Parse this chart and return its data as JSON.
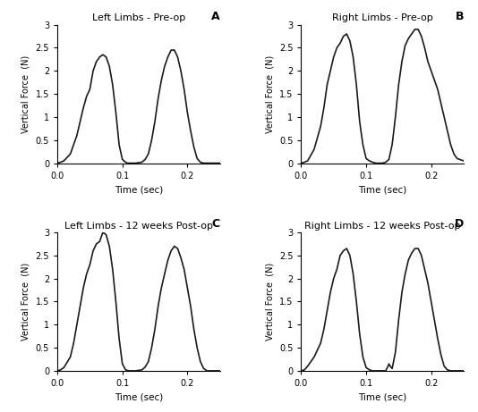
{
  "panels": [
    {
      "title": "Left Limbs - Pre-op",
      "label": "A",
      "xlim": [
        0.0,
        0.25
      ],
      "ylim": [
        0,
        3
      ],
      "xlabel": "Time (sec)",
      "ylabel": "Vertical Force  (N)",
      "xticks": [
        0.0,
        0.1,
        0.2
      ],
      "yticks": [
        0,
        0.5,
        1,
        1.5,
        2,
        2.5,
        3
      ],
      "curves": [
        {
          "t": [
            0.0,
            0.005,
            0.01,
            0.02,
            0.03,
            0.04,
            0.045,
            0.05,
            0.055,
            0.06,
            0.065,
            0.07,
            0.075,
            0.08,
            0.085,
            0.09,
            0.095,
            0.1,
            0.105,
            0.108,
            0.11,
            0.115,
            0.12
          ],
          "y": [
            0.0,
            0.02,
            0.05,
            0.2,
            0.6,
            1.2,
            1.45,
            1.6,
            2.0,
            2.2,
            2.3,
            2.35,
            2.3,
            2.1,
            1.7,
            1.1,
            0.4,
            0.08,
            0.02,
            0.0,
            0.0,
            0.0,
            0.0
          ]
        },
        {
          "t": [
            0.12,
            0.13,
            0.135,
            0.14,
            0.145,
            0.15,
            0.155,
            0.16,
            0.165,
            0.17,
            0.175,
            0.18,
            0.185,
            0.19,
            0.195,
            0.2,
            0.205,
            0.21,
            0.215,
            0.22,
            0.225,
            0.23,
            0.24,
            0.25
          ],
          "y": [
            0.0,
            0.02,
            0.08,
            0.2,
            0.5,
            0.9,
            1.4,
            1.8,
            2.1,
            2.3,
            2.45,
            2.45,
            2.3,
            2.0,
            1.6,
            1.1,
            0.7,
            0.35,
            0.1,
            0.02,
            0.0,
            0.0,
            0.0,
            0.0
          ]
        }
      ]
    },
    {
      "title": "Right Limbs - Pre-op",
      "label": "B",
      "xlim": [
        0.0,
        0.25
      ],
      "ylim": [
        0,
        3
      ],
      "xlabel": "Time (sec)",
      "ylabel": "Vertical Force  (N)",
      "xticks": [
        0.0,
        0.1,
        0.2
      ],
      "yticks": [
        0,
        0.5,
        1,
        1.5,
        2,
        2.5,
        3
      ],
      "curves": [
        {
          "t": [
            0.0,
            0.005,
            0.01,
            0.02,
            0.03,
            0.035,
            0.04,
            0.045,
            0.05,
            0.055,
            0.06,
            0.065,
            0.07,
            0.075,
            0.08,
            0.085,
            0.09,
            0.095,
            0.1,
            0.105,
            0.11,
            0.115,
            0.12
          ],
          "y": [
            0.0,
            0.02,
            0.05,
            0.3,
            0.8,
            1.2,
            1.7,
            2.0,
            2.3,
            2.5,
            2.6,
            2.75,
            2.8,
            2.65,
            2.3,
            1.7,
            0.9,
            0.4,
            0.1,
            0.05,
            0.02,
            0.0,
            0.0
          ]
        },
        {
          "t": [
            0.12,
            0.125,
            0.13,
            0.135,
            0.14,
            0.145,
            0.15,
            0.155,
            0.16,
            0.165,
            0.17,
            0.175,
            0.18,
            0.185,
            0.19,
            0.195,
            0.2,
            0.205,
            0.21,
            0.215,
            0.22,
            0.225,
            0.23,
            0.235,
            0.24,
            0.25
          ],
          "y": [
            0.0,
            0.0,
            0.02,
            0.08,
            0.4,
            1.0,
            1.7,
            2.2,
            2.55,
            2.7,
            2.8,
            2.9,
            2.9,
            2.75,
            2.5,
            2.2,
            2.0,
            1.8,
            1.6,
            1.3,
            1.0,
            0.7,
            0.4,
            0.2,
            0.1,
            0.05
          ]
        }
      ]
    },
    {
      "title": "Left Limbs - 12 weeks Post-op",
      "label": "C",
      "xlim": [
        0.0,
        0.25
      ],
      "ylim": [
        0,
        3
      ],
      "xlabel": "Time (sec)",
      "ylabel": "Vertical Force  (N)",
      "xticks": [
        0.0,
        0.1,
        0.2
      ],
      "yticks": [
        0,
        0.5,
        1,
        1.5,
        2,
        2.5,
        3
      ],
      "curves": [
        {
          "t": [
            0.0,
            0.005,
            0.01,
            0.02,
            0.025,
            0.03,
            0.035,
            0.04,
            0.045,
            0.05,
            0.055,
            0.06,
            0.065,
            0.07,
            0.075,
            0.08,
            0.085,
            0.09,
            0.095,
            0.1,
            0.105,
            0.11,
            0.115,
            0.12
          ],
          "y": [
            0.0,
            0.02,
            0.07,
            0.3,
            0.6,
            1.0,
            1.4,
            1.8,
            2.1,
            2.3,
            2.6,
            2.75,
            2.8,
            3.0,
            2.95,
            2.7,
            2.2,
            1.5,
            0.7,
            0.15,
            0.02,
            0.0,
            0.0,
            0.0
          ]
        },
        {
          "t": [
            0.12,
            0.13,
            0.135,
            0.14,
            0.145,
            0.15,
            0.155,
            0.16,
            0.165,
            0.17,
            0.175,
            0.18,
            0.185,
            0.19,
            0.195,
            0.2,
            0.205,
            0.21,
            0.215,
            0.22,
            0.225,
            0.23,
            0.235,
            0.24,
            0.25
          ],
          "y": [
            0.0,
            0.02,
            0.08,
            0.2,
            0.5,
            0.9,
            1.4,
            1.8,
            2.1,
            2.4,
            2.6,
            2.7,
            2.65,
            2.45,
            2.2,
            1.8,
            1.4,
            0.9,
            0.5,
            0.2,
            0.05,
            0.0,
            0.0,
            0.0,
            0.0
          ]
        }
      ]
    },
    {
      "title": "Right Limbs - 12 weeks Post-op",
      "label": "D",
      "xlim": [
        0.0,
        0.25
      ],
      "ylim": [
        0,
        3
      ],
      "xlabel": "Time (sec)",
      "ylabel": "Vertical Force  (N)",
      "xticks": [
        0.0,
        0.1,
        0.2
      ],
      "yticks": [
        0,
        0.5,
        1,
        1.5,
        2,
        2.5,
        3
      ],
      "curves": [
        {
          "t": [
            0.0,
            0.005,
            0.01,
            0.02,
            0.03,
            0.035,
            0.04,
            0.045,
            0.05,
            0.055,
            0.06,
            0.065,
            0.07,
            0.075,
            0.08,
            0.085,
            0.09,
            0.095,
            0.1,
            0.105,
            0.11,
            0.115,
            0.12
          ],
          "y": [
            0.0,
            0.02,
            0.1,
            0.3,
            0.6,
            0.9,
            1.3,
            1.7,
            2.0,
            2.2,
            2.5,
            2.6,
            2.65,
            2.5,
            2.1,
            1.5,
            0.8,
            0.3,
            0.07,
            0.02,
            0.0,
            0.0,
            0.0
          ]
        },
        {
          "t": [
            0.12,
            0.125,
            0.13,
            0.133,
            0.135,
            0.137,
            0.14,
            0.145,
            0.15,
            0.155,
            0.16,
            0.165,
            0.17,
            0.175,
            0.18,
            0.185,
            0.19,
            0.195,
            0.2,
            0.205,
            0.21,
            0.215,
            0.22,
            0.225,
            0.23,
            0.24,
            0.25
          ],
          "y": [
            0.0,
            0.0,
            0.0,
            0.08,
            0.15,
            0.1,
            0.05,
            0.4,
            1.1,
            1.7,
            2.1,
            2.4,
            2.55,
            2.65,
            2.65,
            2.5,
            2.2,
            1.9,
            1.5,
            1.1,
            0.7,
            0.35,
            0.1,
            0.02,
            0.0,
            0.0,
            0.0
          ]
        }
      ]
    }
  ],
  "bg_color": "#ffffff",
  "plot_bg_color": "#ffffff",
  "line_color": "#1a1a1a",
  "line_width": 1.2
}
